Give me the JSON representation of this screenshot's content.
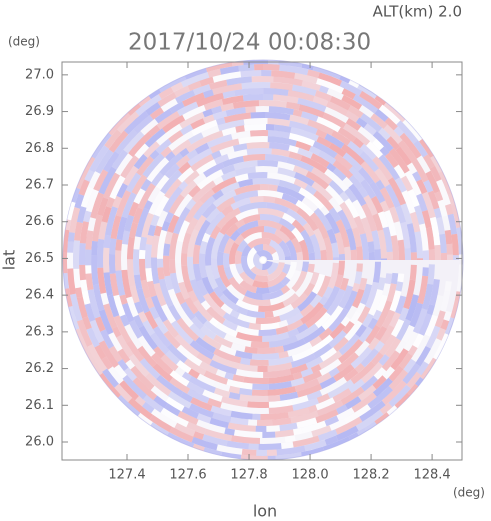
{
  "chart_data": {
    "type": "radar-ppi",
    "title": "2017/10/24 00:08:30",
    "altitude_label": "ALT(km) 2.0",
    "x_label": "lon",
    "y_label": "lat",
    "x_unit": "(deg)",
    "y_unit": "(deg)",
    "xlim": [
      127.187,
      128.498
    ],
    "ylim": [
      25.951,
      27.035
    ],
    "xticks": [
      127.4,
      127.6,
      127.8,
      {
        "value": 128,
        "label": "128.0"
      },
      128.2,
      128.4
    ],
    "yticks": [
      {
        "value": 26,
        "label": "26.0"
      },
      26.1,
      26.2,
      26.3,
      26.4,
      26.5,
      26.6,
      26.7,
      26.8,
      26.9,
      {
        "value": 27,
        "label": "27.0"
      }
    ]
  }
}
